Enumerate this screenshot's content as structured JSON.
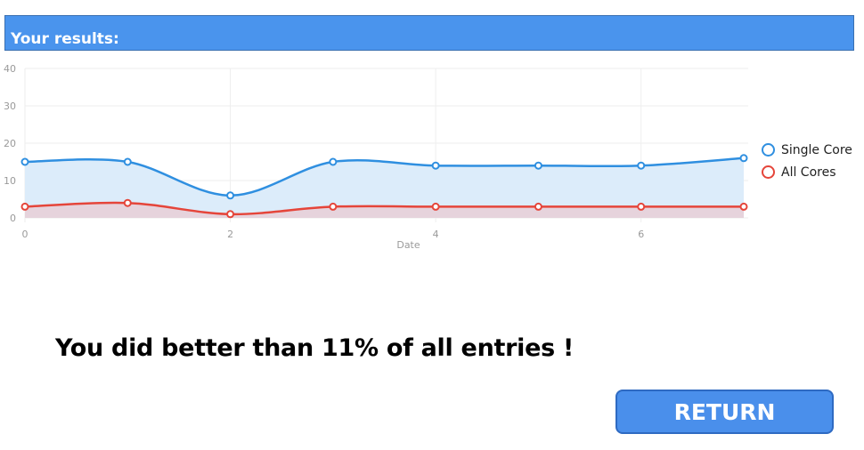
{
  "header": {
    "title": "Your results:"
  },
  "chart_data": {
    "type": "area",
    "xlabel": "Date",
    "x": [
      0,
      1,
      2,
      3,
      4,
      5,
      6,
      7
    ],
    "xticks": [
      0,
      2,
      4,
      6
    ],
    "yticks": [
      0,
      10,
      20,
      30,
      40
    ],
    "ylim": [
      0,
      40
    ],
    "xlim": [
      0,
      7
    ],
    "grid": true,
    "legend_position": "right",
    "series": [
      {
        "name": "Single Core",
        "color": "#2f8fe0",
        "fill": "#dcecfa",
        "values": [
          15,
          15,
          6,
          15,
          14,
          14,
          14,
          16
        ]
      },
      {
        "name": "All Cores",
        "color": "#e5453a",
        "fill": "#e6d3dc",
        "values": [
          3,
          4,
          1,
          3,
          3,
          3,
          3,
          3
        ]
      }
    ]
  },
  "legend": {
    "items": [
      {
        "label": "Single Core",
        "color": "#2f8fe0"
      },
      {
        "label": "All Cores",
        "color": "#e5453a"
      }
    ]
  },
  "message": "You did better than 11% of all entries !",
  "return_button": {
    "label": "RETURN"
  }
}
